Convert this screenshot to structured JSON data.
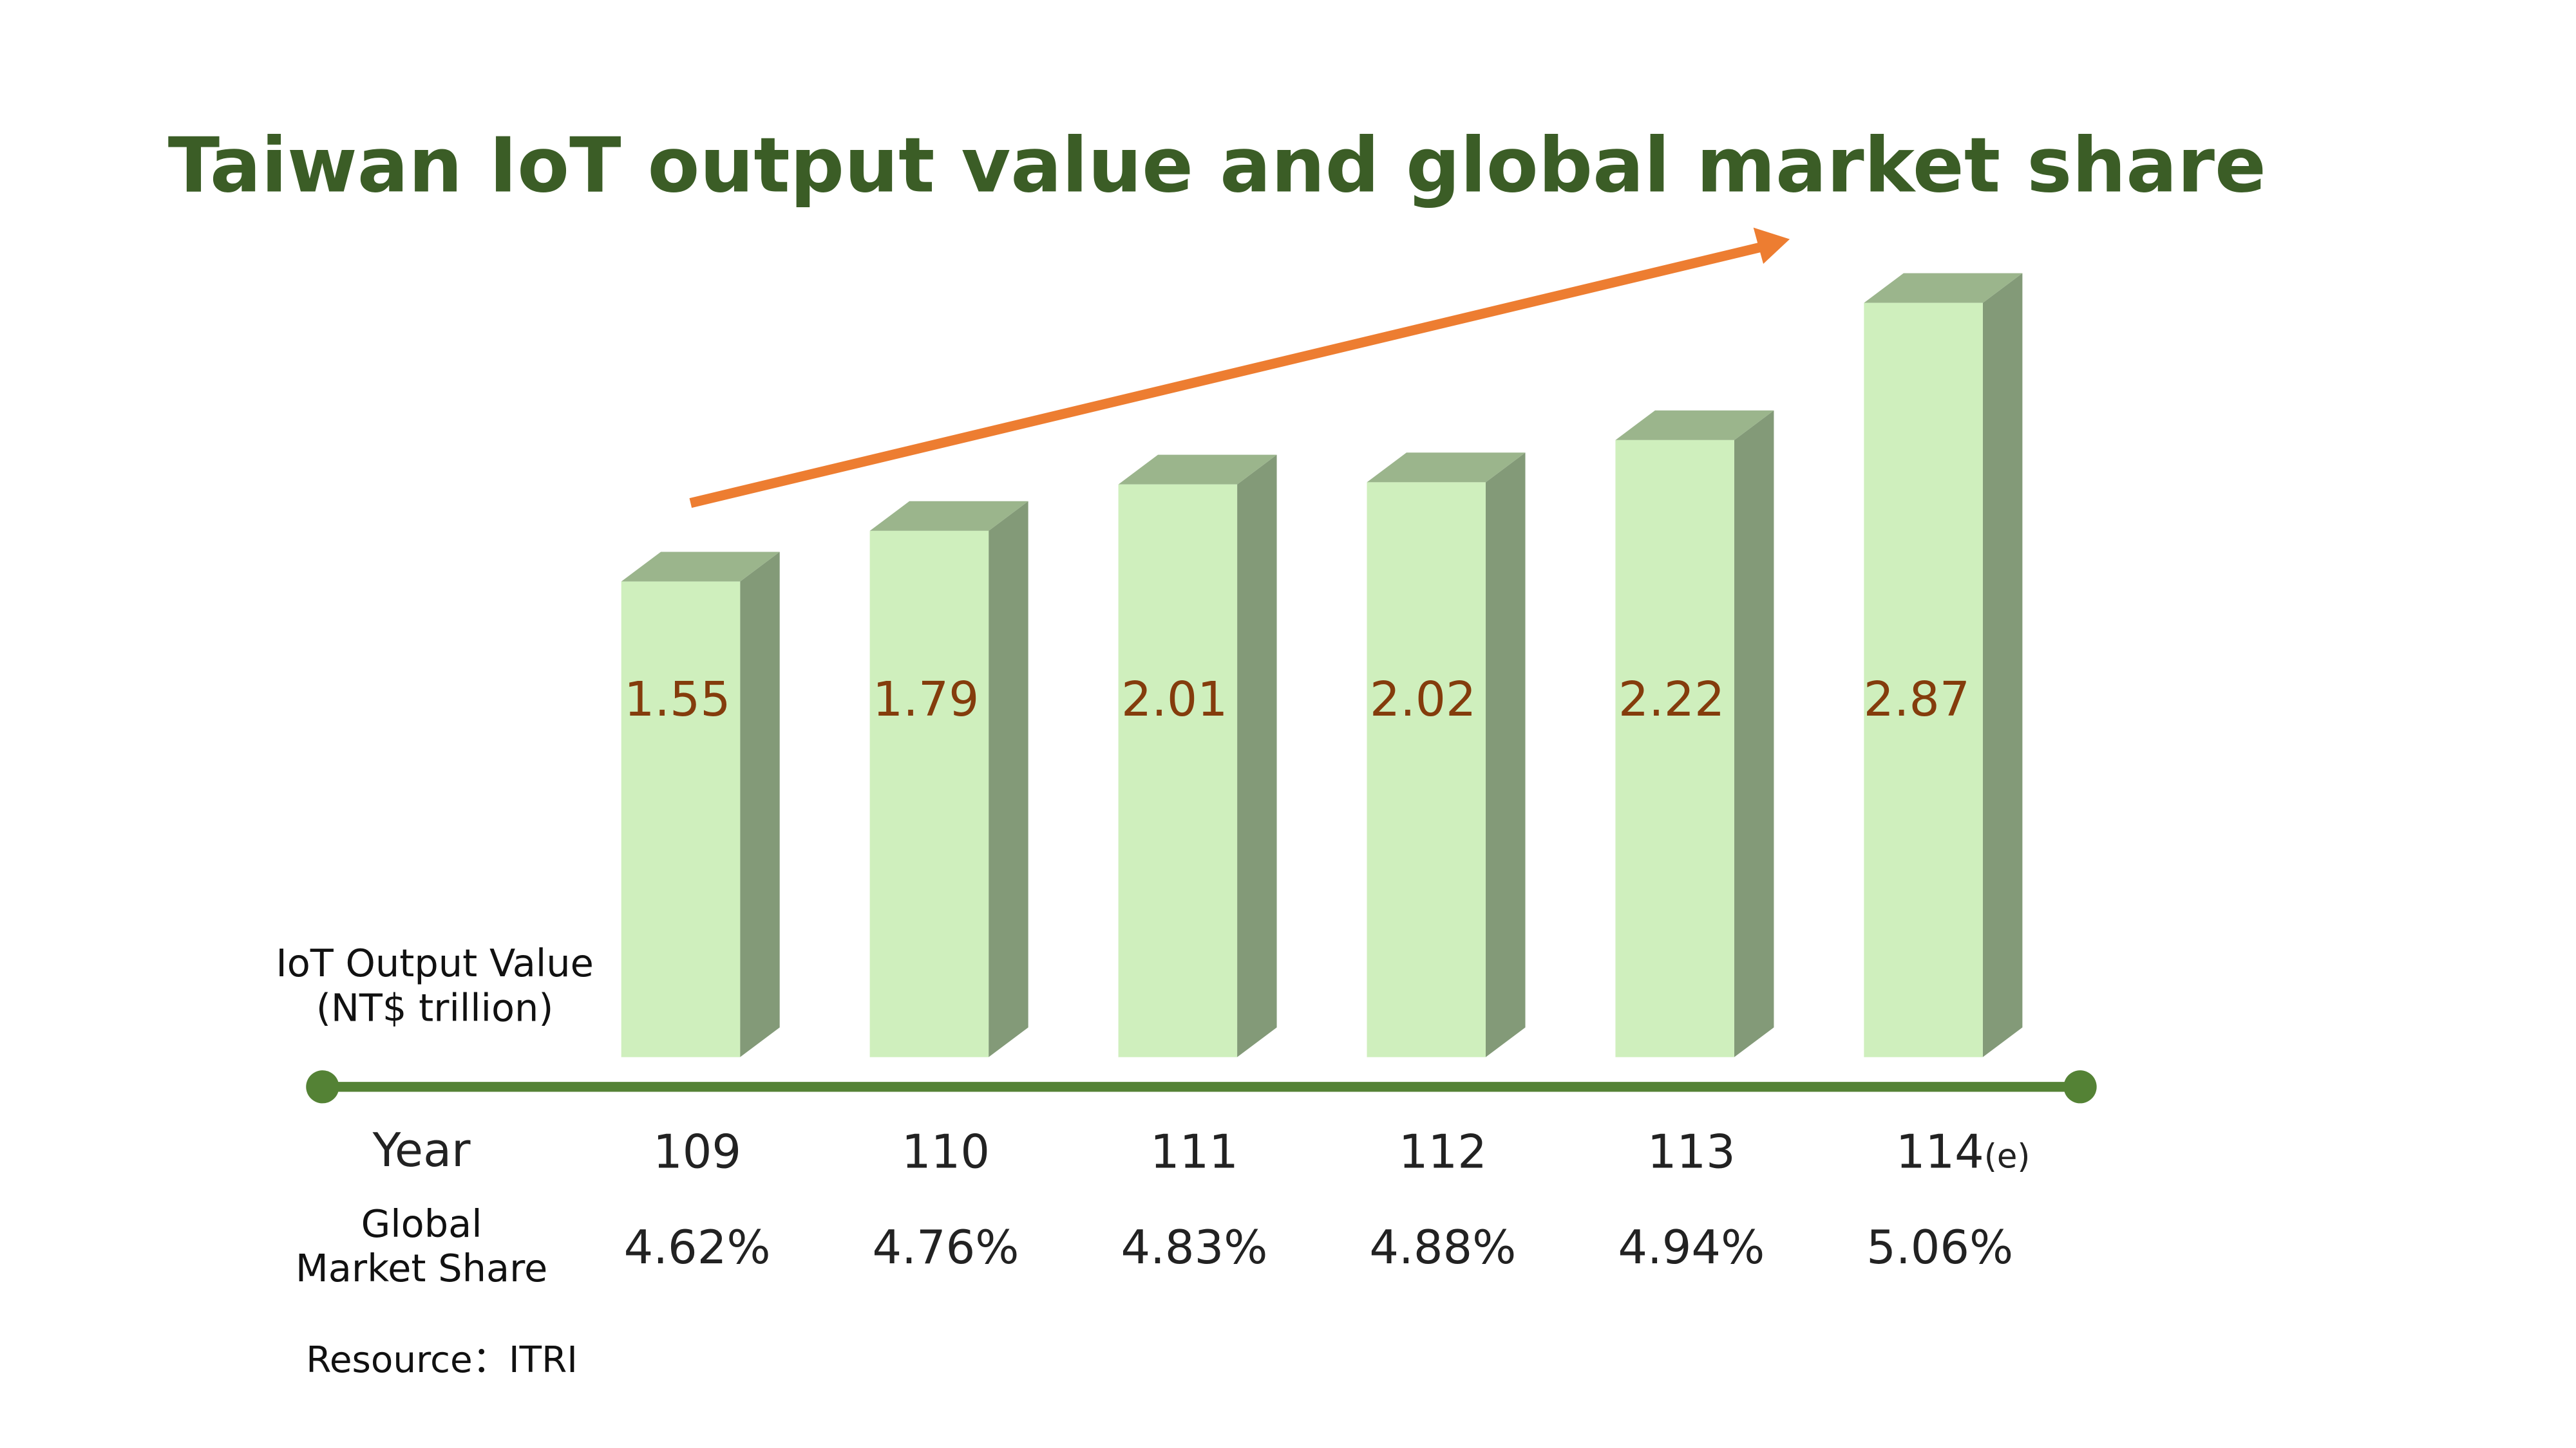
{
  "chart_data": {
    "type": "bar",
    "title": "Taiwan IoT output value and global market share",
    "ylabel_line1": "IoT Output Value",
    "ylabel_line2": "(NT$ trillion)",
    "xlabel": "Year",
    "categories": [
      "109",
      "110",
      "111",
      "112",
      "113",
      "114"
    ],
    "category_suffixes": [
      "",
      "",
      "",
      "",
      "",
      "(e)"
    ],
    "values": [
      1.55,
      1.79,
      2.01,
      2.02,
      2.22,
      2.87
    ],
    "value_labels": [
      "1.55",
      "1.79",
      "2.01",
      "2.02",
      "2.22",
      "2.87"
    ],
    "market_share_label_line1": "Global",
    "market_share_label_line2": "Market Share",
    "market_share": [
      "4.62%",
      "4.76%",
      "4.83%",
      "4.88%",
      "4.94%",
      "5.06%"
    ],
    "trend_arrow": "increasing",
    "source": "Resource：ITRI",
    "grid": false,
    "style": "3d-bar",
    "colors": {
      "bar_front": "#cfefbd",
      "bar_top": "#9bb58c",
      "bar_side": "#839a78",
      "value_text": "#843c0c",
      "axis": "#548235",
      "arrow": "#ed7d31",
      "title": "#3b5d26"
    }
  }
}
